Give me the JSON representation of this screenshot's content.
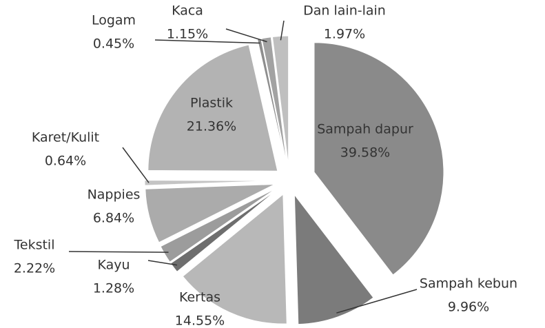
{
  "chart_data": {
    "type": "pie",
    "categories": [
      "Sampah dapur",
      "Sampah kebun",
      "Kertas",
      "Kayu",
      "Tekstil",
      "Nappies",
      "Karet/Kulit",
      "Plastik",
      "Logam",
      "Kaca",
      "Dan lain-lain"
    ],
    "values": [
      39.58,
      9.96,
      14.55,
      1.28,
      2.22,
      6.84,
      0.64,
      21.36,
      0.45,
      1.15,
      1.97
    ],
    "value_labels": [
      "39.58%",
      "9.96%",
      "14.55%",
      "1.28%",
      "2.22%",
      "6.84%",
      "0.64%",
      "21.36%",
      "0.45%",
      "1.15%",
      "1.97%"
    ],
    "colors": [
      "#8a8a8a",
      "#7b7b7b",
      "#b8b8b8",
      "#6e6e6e",
      "#9c9c9c",
      "#ababab",
      "#c4c4c4",
      "#b3b3b3",
      "#8e8e8e",
      "#a2a2a2",
      "#bfbfbf"
    ]
  }
}
